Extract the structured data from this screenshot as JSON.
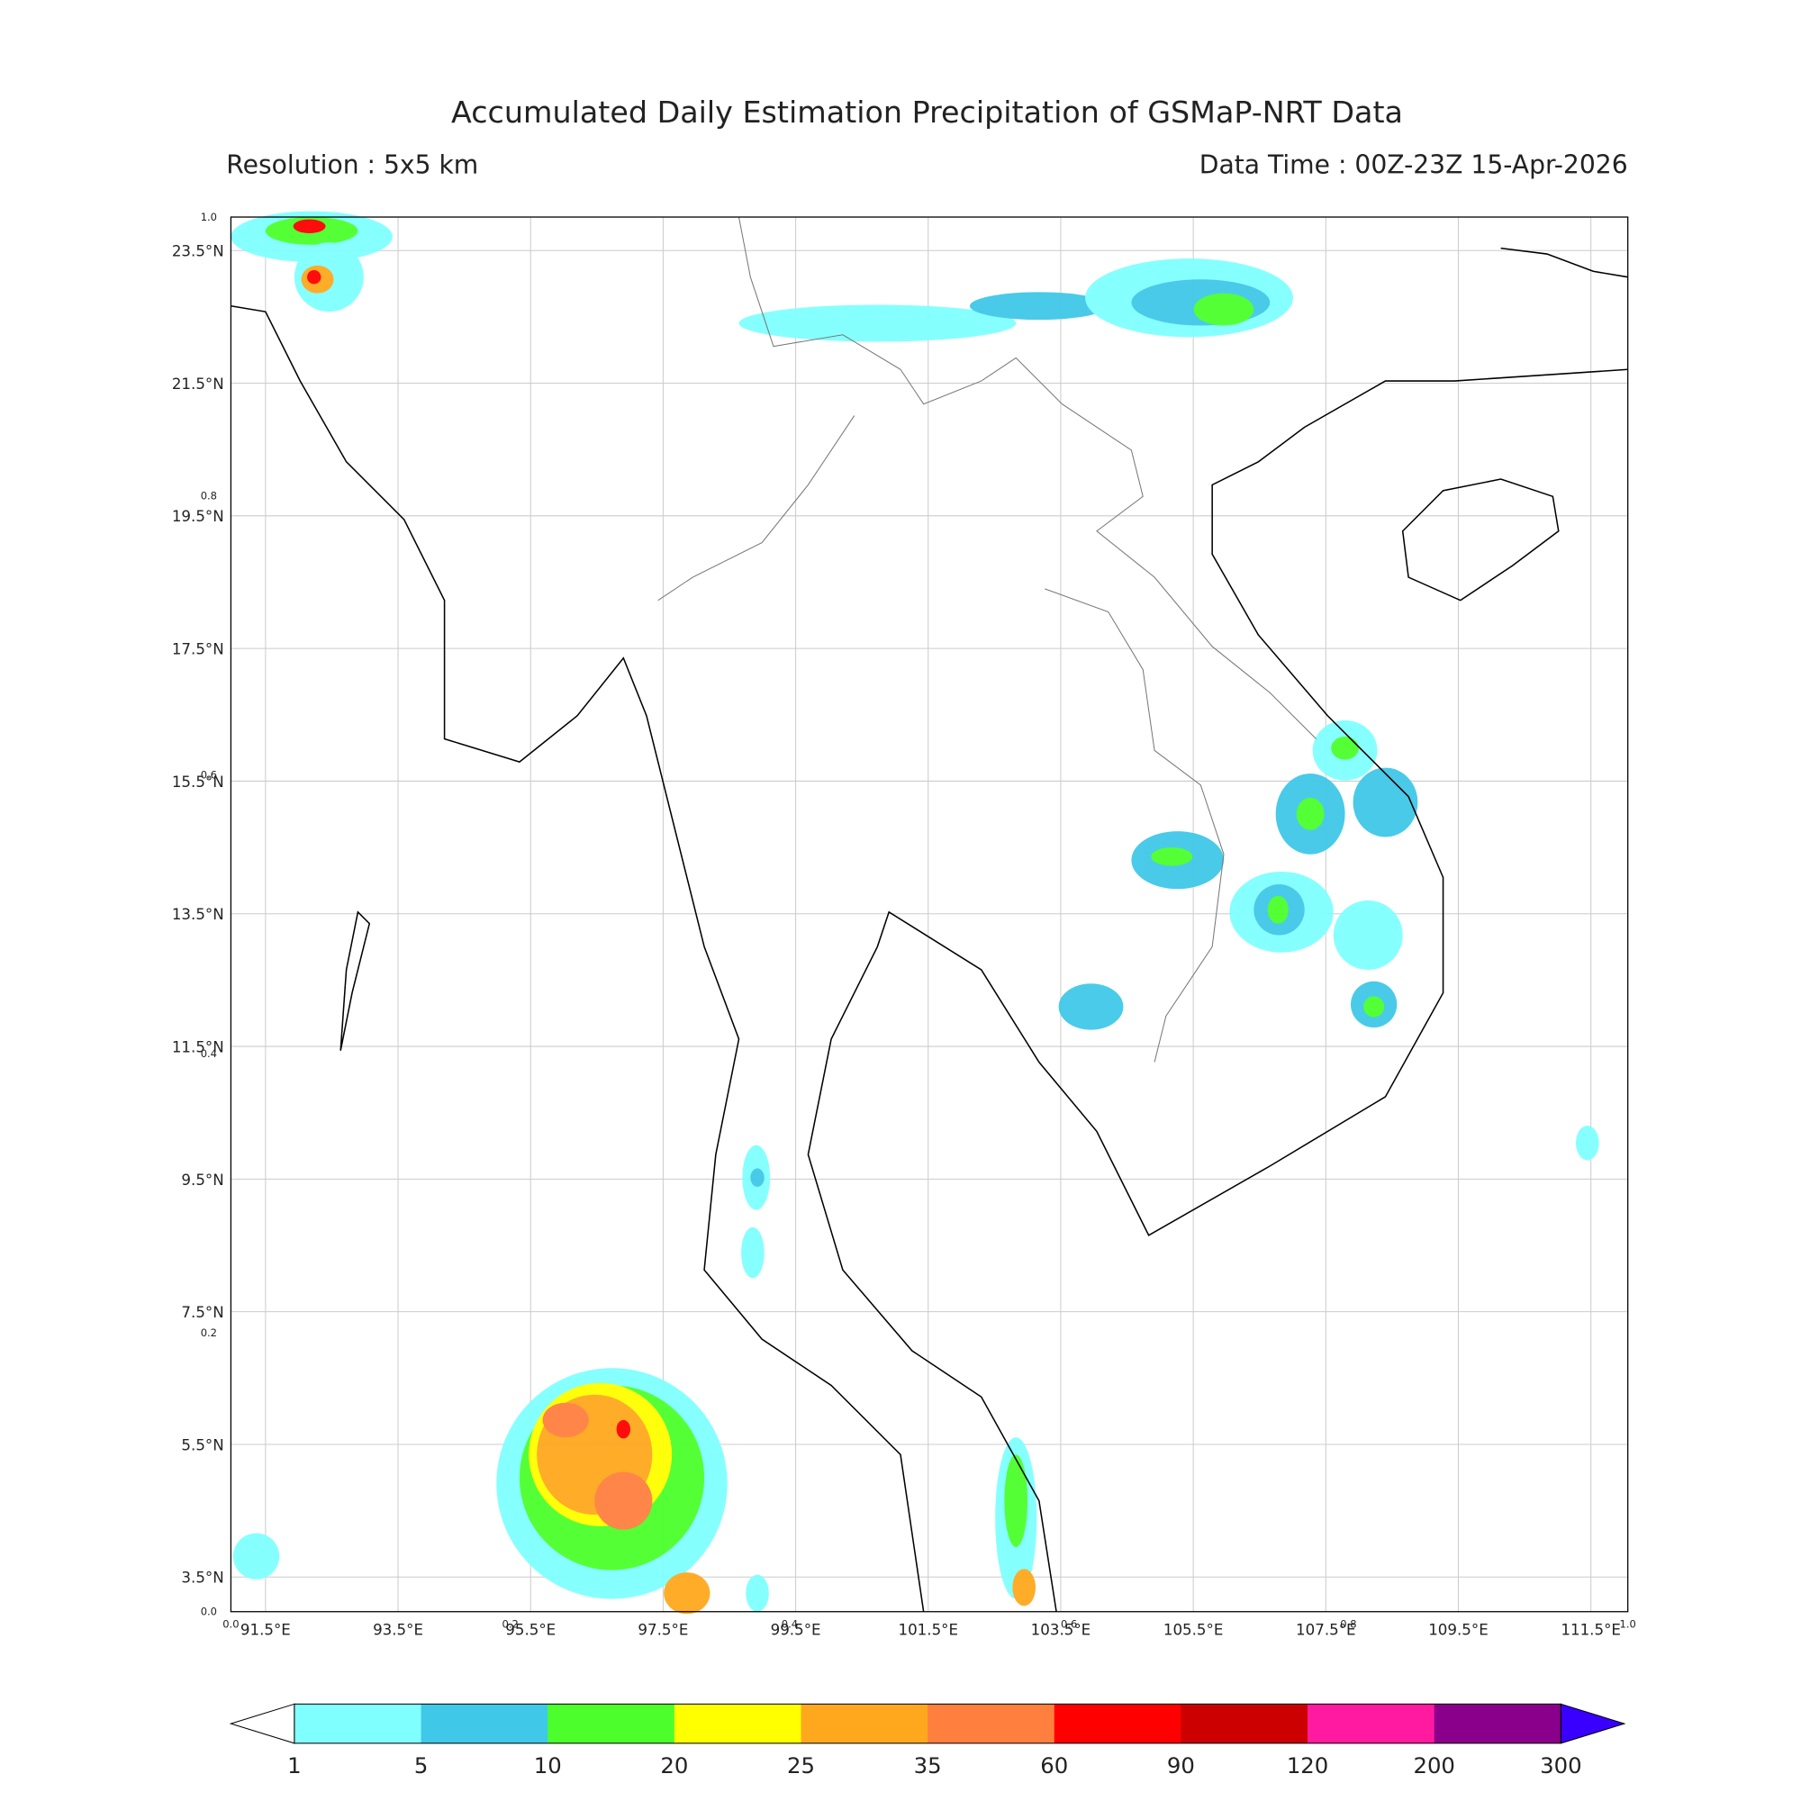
{
  "title": "Accumulated Daily Estimation Precipitation of GSMaP-NRT Data",
  "resolution": "Resolution : 5x5 km",
  "data_time": "Data Time : 00Z-23Z 15-Apr-2026",
  "map": {
    "lon_labels": [
      "91.5°E",
      "93.5°E",
      "95.5°E",
      "97.5°E",
      "99.5°E",
      "101.5°E",
      "103.5°E",
      "105.5°E",
      "107.5°E",
      "109.5°E",
      "111.5°E"
    ],
    "lat_labels": [
      "23.5°N",
      "21.5°N",
      "19.5°N",
      "17.5°N",
      "15.5°N",
      "13.5°N",
      "11.5°N",
      "9.5°N",
      "7.5°N",
      "5.5°N",
      "3.5°N"
    ],
    "frame_ticks": [
      "0.0",
      "0.2",
      "0.4",
      "0.6",
      "0.8",
      "1.0"
    ]
  },
  "colorbar": {
    "levels": [
      1,
      5,
      10,
      20,
      25,
      35,
      60,
      90,
      120,
      200,
      300
    ],
    "colors": [
      "#80ffff",
      "#40c8e8",
      "#4cff2c",
      "#ffff00",
      "#ffa81e",
      "#ff7f3f",
      "#ff0000",
      "#cc0000",
      "#ff1aa0",
      "#8b008b"
    ],
    "under_color": "#ffffff",
    "over_color": "#3a00ff"
  }
}
